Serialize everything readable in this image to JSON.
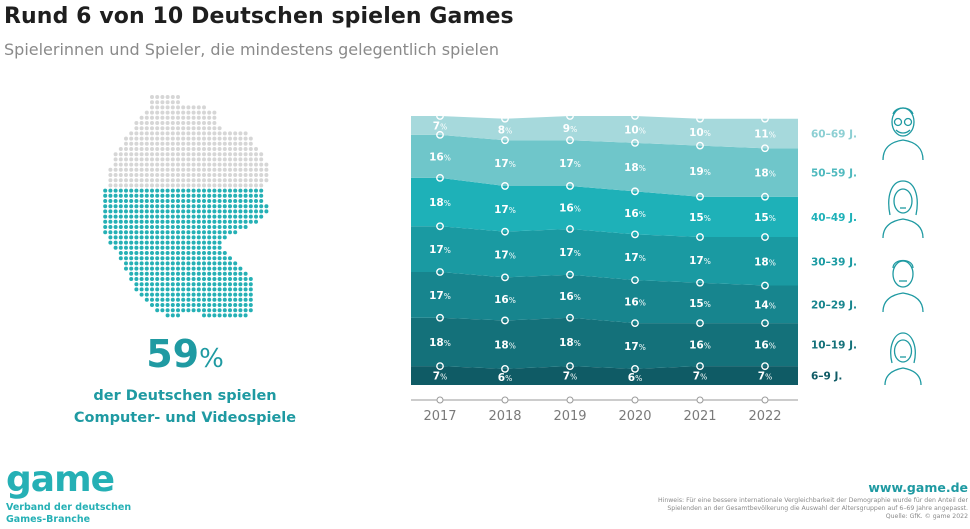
{
  "header": {
    "title": "Rund 6 von 10 Deutschen spielen Games",
    "subtitle": "Spielerinnen und Spieler, die mindestens gelegentlich spielen"
  },
  "highlight": {
    "number": "59",
    "percent_sign": "%",
    "line1": "der Deutschen spielen",
    "line2": "Computer- und Videospiele",
    "share_filled": 0.59
  },
  "chart_data": {
    "type": "area",
    "x": [
      "2017",
      "2018",
      "2019",
      "2020",
      "2021",
      "2022"
    ],
    "value_suffix": "%",
    "stacking": "100% stacked, bottom to top",
    "series": [
      {
        "name": "6–9 J.",
        "values": [
          7,
          6,
          7,
          6,
          7,
          7
        ],
        "color": "#0f5b65"
      },
      {
        "name": "10–19 J.",
        "values": [
          18,
          18,
          18,
          17,
          16,
          16
        ],
        "color": "#14717a"
      },
      {
        "name": "20–29 J.",
        "values": [
          17,
          16,
          16,
          16,
          15,
          14
        ],
        "color": "#17858e"
      },
      {
        "name": "30–39 J.",
        "values": [
          17,
          17,
          17,
          17,
          17,
          18
        ],
        "color": "#1a9aa2"
      },
      {
        "name": "40–49 J.",
        "values": [
          18,
          17,
          16,
          16,
          15,
          15
        ],
        "color": "#1eb1b8"
      },
      {
        "name": "50–59 J.",
        "values": [
          16,
          17,
          17,
          18,
          19,
          18
        ],
        "color": "#6fc6ca"
      },
      {
        "name": "60–69 J.",
        "values": [
          7,
          8,
          9,
          10,
          10,
          11
        ],
        "color": "#a6d9dc"
      }
    ],
    "ylim": [
      0,
      100
    ],
    "grid": false,
    "legend": "right"
  },
  "colors": {
    "accent": "#1f9aa2",
    "map_empty": "#d6d6d6",
    "map_filled": "#25b0b5"
  },
  "icons": [
    "senior-person-icon",
    "woman-icon",
    "man-icon",
    "young-man-icon",
    "child-icon"
  ],
  "footer": {
    "logo": "game",
    "logo_sub1": "Verband der deutschen",
    "logo_sub2": "Games-Branche",
    "website": "www.game.de",
    "note1": "Hinweis: Für eine bessere internationale Vergleichbarkeit der Demographie wurde für den Anteil der",
    "note2": "Spielenden an der Gesamtbevölkerung die Auswahl der Altersgruppen auf 6–69 Jahre angepasst.",
    "note3": "Quelle: GfK. © game 2022"
  }
}
